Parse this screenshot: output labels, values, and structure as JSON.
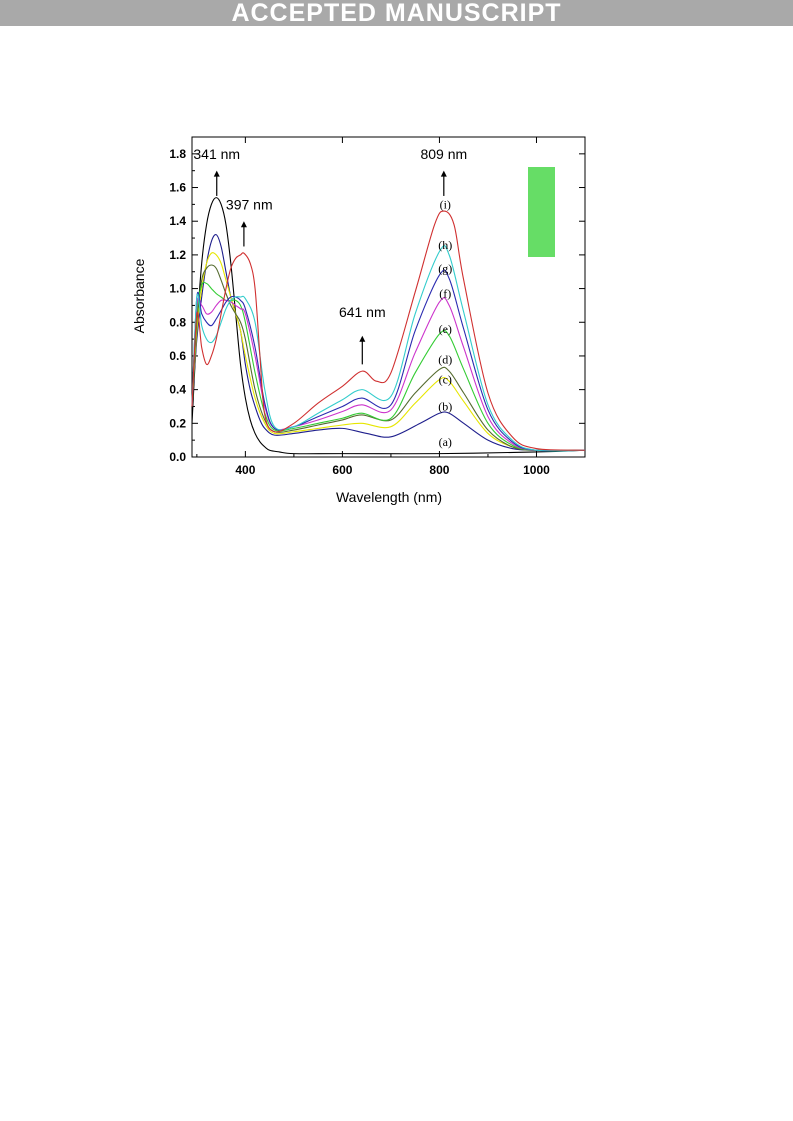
{
  "banner": {
    "text": "ACCEPTED MANUSCRIPT"
  },
  "chart_data": {
    "type": "line",
    "xlabel": "Wavelength (nm)",
    "ylabel": "Absorbance",
    "xlim": [
      290,
      1100
    ],
    "ylim": [
      0.0,
      1.9
    ],
    "xticks": [
      400,
      600,
      800,
      1000
    ],
    "yticks": [
      0.0,
      0.2,
      0.4,
      0.6,
      0.8,
      1.0,
      1.2,
      1.4,
      1.6,
      1.8
    ],
    "xtick_labels": [
      "400",
      "600",
      "800",
      "1000"
    ],
    "ytick_labels": [
      "0.0",
      "0.2",
      "0.4",
      "0.6",
      "0.8",
      "1.0",
      "1.2",
      "1.4",
      "1.6",
      "1.8"
    ],
    "grid": false,
    "annotations": [
      {
        "text": "341 nm",
        "x": 341,
        "y": 1.77
      },
      {
        "text": "397 nm",
        "x": 397,
        "y": 1.47
      },
      {
        "text": "641 nm",
        "x": 641,
        "y": 0.83
      },
      {
        "text": "809 nm",
        "x": 809,
        "y": 1.77
      }
    ],
    "inset": {
      "color": "#66dd66"
    },
    "series": [
      {
        "label": "(a)",
        "color": "#000000",
        "x": [
          290,
          300,
          310,
          320,
          330,
          340,
          350,
          360,
          370,
          380,
          390,
          400,
          410,
          420,
          430,
          440,
          450,
          470,
          500,
          600,
          800,
          1000,
          1100
        ],
        "y": [
          0.2,
          0.75,
          1.15,
          1.38,
          1.5,
          1.54,
          1.5,
          1.38,
          1.15,
          0.85,
          0.55,
          0.35,
          0.22,
          0.14,
          0.09,
          0.06,
          0.04,
          0.03,
          0.02,
          0.02,
          0.02,
          0.03,
          0.04
        ],
        "label_pos": [
          812,
          0.09
        ]
      },
      {
        "label": "(b)",
        "color": "#1e1e8c",
        "x": [
          290,
          300,
          310,
          320,
          330,
          340,
          350,
          360,
          370,
          380,
          390,
          400,
          410,
          420,
          430,
          440,
          460,
          500,
          550,
          600,
          650,
          700,
          760,
          800,
          820,
          850,
          900,
          950,
          1000,
          1100
        ],
        "y": [
          0.3,
          0.7,
          0.95,
          1.15,
          1.28,
          1.32,
          1.25,
          1.1,
          0.95,
          0.85,
          0.75,
          0.55,
          0.4,
          0.3,
          0.22,
          0.17,
          0.13,
          0.14,
          0.16,
          0.17,
          0.14,
          0.12,
          0.2,
          0.26,
          0.26,
          0.2,
          0.1,
          0.05,
          0.04,
          0.04
        ],
        "label_pos": [
          812,
          0.3
        ]
      },
      {
        "label": "(c)",
        "color": "#e6e600",
        "x": [
          290,
          300,
          310,
          320,
          330,
          340,
          350,
          360,
          370,
          380,
          390,
          400,
          420,
          440,
          460,
          500,
          550,
          600,
          640,
          700,
          750,
          800,
          820,
          850,
          900,
          950,
          1000,
          1100
        ],
        "y": [
          0.3,
          0.75,
          1.0,
          1.15,
          1.21,
          1.2,
          1.15,
          1.05,
          0.95,
          0.85,
          0.75,
          0.6,
          0.35,
          0.2,
          0.14,
          0.15,
          0.17,
          0.19,
          0.2,
          0.18,
          0.32,
          0.46,
          0.45,
          0.33,
          0.14,
          0.06,
          0.04,
          0.04
        ],
        "label_pos": [
          812,
          0.46
        ]
      },
      {
        "label": "(d)",
        "color": "#556b2f",
        "x": [
          290,
          300,
          310,
          320,
          330,
          340,
          350,
          360,
          370,
          380,
          390,
          400,
          420,
          440,
          460,
          500,
          550,
          600,
          640,
          700,
          750,
          800,
          820,
          850,
          900,
          950,
          1000,
          1100
        ],
        "y": [
          0.3,
          0.8,
          1.05,
          1.12,
          1.14,
          1.12,
          1.05,
          0.97,
          0.9,
          0.85,
          0.8,
          0.7,
          0.4,
          0.22,
          0.15,
          0.16,
          0.19,
          0.22,
          0.25,
          0.22,
          0.38,
          0.52,
          0.51,
          0.38,
          0.16,
          0.06,
          0.04,
          0.04
        ],
        "label_pos": [
          812,
          0.58
        ]
      },
      {
        "label": "(e)",
        "color": "#33cc33",
        "x": [
          290,
          300,
          310,
          320,
          330,
          340,
          350,
          360,
          370,
          380,
          390,
          400,
          420,
          440,
          460,
          500,
          550,
          600,
          640,
          700,
          750,
          800,
          820,
          850,
          900,
          950,
          1000,
          1100
        ],
        "y": [
          0.3,
          0.85,
          1.02,
          1.03,
          1.0,
          0.97,
          0.95,
          0.93,
          0.93,
          0.93,
          0.9,
          0.8,
          0.5,
          0.26,
          0.16,
          0.17,
          0.2,
          0.23,
          0.26,
          0.23,
          0.5,
          0.73,
          0.72,
          0.52,
          0.2,
          0.07,
          0.04,
          0.04
        ],
        "label_pos": [
          812,
          0.76
        ]
      },
      {
        "label": "(f)",
        "color": "#cc33cc",
        "x": [
          290,
          300,
          310,
          320,
          330,
          340,
          350,
          360,
          370,
          380,
          390,
          400,
          420,
          440,
          460,
          500,
          550,
          600,
          640,
          700,
          750,
          800,
          820,
          850,
          900,
          950,
          1000,
          1100
        ],
        "y": [
          0.3,
          0.9,
          0.9,
          0.85,
          0.86,
          0.9,
          0.93,
          0.93,
          0.92,
          0.9,
          0.88,
          0.85,
          0.6,
          0.3,
          0.17,
          0.18,
          0.22,
          0.27,
          0.31,
          0.28,
          0.62,
          0.92,
          0.9,
          0.65,
          0.24,
          0.08,
          0.04,
          0.04
        ],
        "label_pos": [
          812,
          0.97
        ]
      },
      {
        "label": "(g)",
        "color": "#2a2ab0",
        "x": [
          290,
          300,
          310,
          320,
          330,
          340,
          350,
          360,
          370,
          380,
          390,
          400,
          420,
          440,
          460,
          500,
          550,
          600,
          640,
          700,
          750,
          800,
          820,
          850,
          900,
          950,
          1000,
          1100
        ],
        "y": [
          0.3,
          0.95,
          0.85,
          0.8,
          0.78,
          0.82,
          0.87,
          0.92,
          0.95,
          0.95,
          0.93,
          0.88,
          0.65,
          0.32,
          0.17,
          0.18,
          0.24,
          0.3,
          0.35,
          0.31,
          0.75,
          1.08,
          1.06,
          0.76,
          0.28,
          0.09,
          0.04,
          0.04
        ],
        "label_pos": [
          812,
          1.12
        ]
      },
      {
        "label": "(h)",
        "color": "#33cccc",
        "x": [
          290,
          300,
          310,
          320,
          330,
          340,
          350,
          360,
          370,
          380,
          390,
          400,
          420,
          440,
          460,
          500,
          550,
          600,
          640,
          700,
          750,
          800,
          820,
          850,
          900,
          950,
          1000,
          1100
        ],
        "y": [
          0.3,
          0.95,
          0.78,
          0.7,
          0.68,
          0.72,
          0.8,
          0.88,
          0.93,
          0.95,
          0.95,
          0.94,
          0.8,
          0.4,
          0.18,
          0.18,
          0.26,
          0.34,
          0.4,
          0.36,
          0.85,
          1.22,
          1.2,
          0.86,
          0.31,
          0.1,
          0.04,
          0.04
        ],
        "label_pos": [
          812,
          1.26
        ]
      },
      {
        "label": "(i)",
        "color": "#d03030",
        "x": [
          290,
          300,
          310,
          320,
          330,
          340,
          350,
          360,
          370,
          380,
          390,
          397,
          410,
          420,
          430,
          440,
          460,
          500,
          550,
          600,
          641,
          670,
          700,
          750,
          790,
          809,
          830,
          850,
          900,
          950,
          1000,
          1100
        ],
        "y": [
          0.3,
          0.85,
          0.65,
          0.55,
          0.6,
          0.7,
          0.85,
          1.0,
          1.12,
          1.18,
          1.2,
          1.21,
          1.15,
          1.0,
          0.6,
          0.25,
          0.15,
          0.2,
          0.32,
          0.42,
          0.51,
          0.45,
          0.5,
          0.98,
          1.38,
          1.46,
          1.38,
          1.05,
          0.38,
          0.12,
          0.05,
          0.04
        ],
        "label_pos": [
          812,
          1.5
        ]
      }
    ]
  }
}
